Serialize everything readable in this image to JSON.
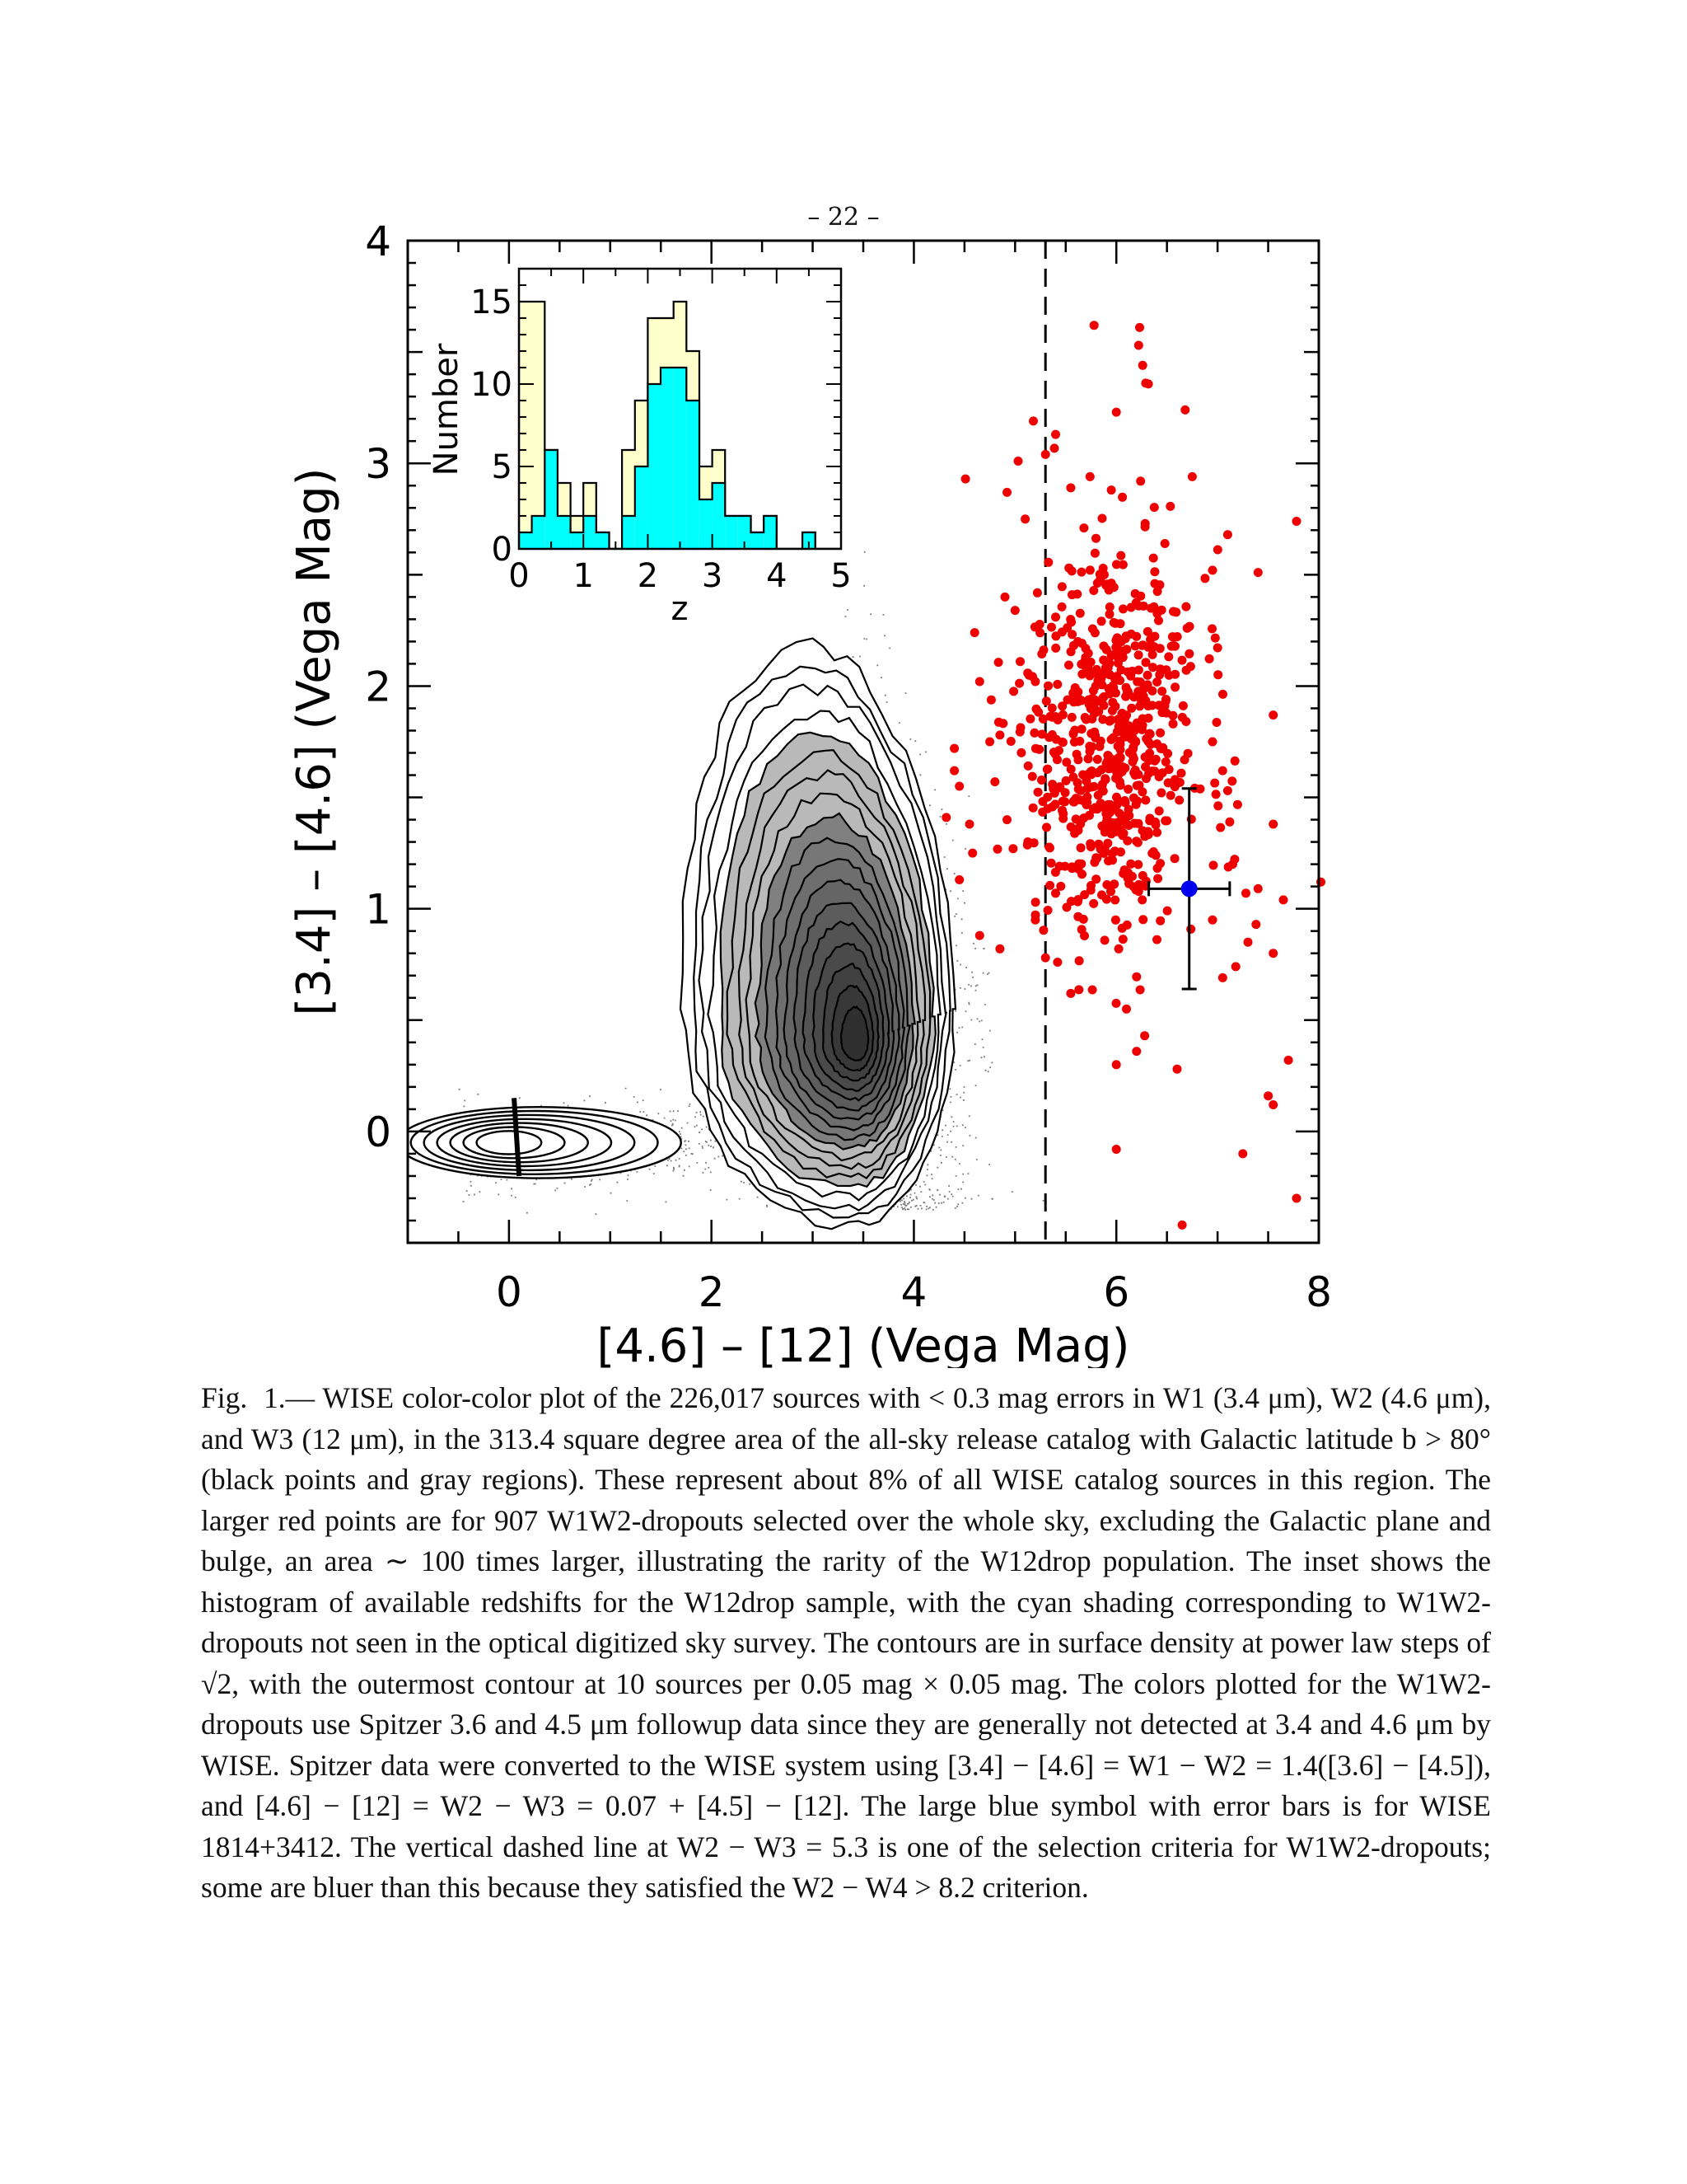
{
  "page": {
    "number": "– 22 –"
  },
  "chart_data": [
    {
      "type": "scatter",
      "xlabel": "[4.6] – [12] (Vega Mag)",
      "ylabel": "[3.4] – [4.6] (Vega Mag)",
      "xlim": [
        -1,
        8
      ],
      "ylim": [
        -0.5,
        4
      ],
      "xticks": [
        "0",
        "2",
        "4",
        "6",
        "8"
      ],
      "yticks": [
        "0",
        "1",
        "2",
        "3",
        "4"
      ],
      "xtick_values": [
        0,
        2,
        4,
        6,
        8
      ],
      "ytick_values": [
        0,
        1,
        2,
        3,
        4
      ],
      "selection_line_x": 5.3,
      "contour_peak": {
        "x": 3.45,
        "y": 0.4
      },
      "highlight_point": {
        "x": 6.72,
        "y": 1.09,
        "xerr": 0.4,
        "yerr_low": 0.45,
        "yerr_high": 0.45,
        "color": "#0000ee"
      },
      "dropout_color": "#ee0000",
      "dropout_points": [
        [
          5.78,
          3.62
        ],
        [
          6.23,
          3.61
        ],
        [
          6.22,
          3.53
        ],
        [
          6.26,
          3.44
        ],
        [
          6.29,
          3.36
        ],
        [
          6.68,
          3.24
        ],
        [
          6.0,
          3.23
        ],
        [
          5.18,
          3.19
        ],
        [
          5.4,
          3.13
        ],
        [
          5.03,
          3.01
        ],
        [
          5.3,
          3.04
        ],
        [
          5.55,
          2.89
        ],
        [
          4.51,
          2.93
        ],
        [
          5.74,
          2.94
        ],
        [
          5.95,
          2.88
        ],
        [
          6.24,
          2.92
        ],
        [
          6.75,
          2.94
        ],
        [
          7.78,
          2.74
        ],
        [
          4.92,
          2.87
        ],
        [
          5.1,
          2.75
        ],
        [
          5.68,
          2.71
        ],
        [
          6.48,
          2.64
        ],
        [
          7.1,
          2.68
        ],
        [
          5.88,
          2.5
        ],
        [
          6.38,
          2.46
        ],
        [
          6.95,
          2.52
        ],
        [
          7.4,
          2.51
        ],
        [
          5.4,
          2.31
        ],
        [
          5.95,
          2.14
        ],
        [
          6.7,
          2.26
        ],
        [
          5.2,
          2.02
        ],
        [
          5.05,
          2.11
        ],
        [
          4.65,
          2.02
        ],
        [
          5.62,
          1.93
        ],
        [
          6.18,
          1.8
        ],
        [
          4.85,
          1.78
        ],
        [
          4.75,
          1.75
        ],
        [
          6.95,
          1.75
        ],
        [
          7.55,
          1.87
        ],
        [
          4.4,
          1.72
        ],
        [
          4.4,
          1.62
        ],
        [
          6.58,
          1.58
        ],
        [
          4.45,
          1.55
        ],
        [
          7.1,
          1.53
        ],
        [
          4.8,
          1.57
        ],
        [
          4.32,
          1.41
        ],
        [
          4.55,
          1.38
        ],
        [
          7.05,
          1.62
        ],
        [
          4.92,
          1.4
        ],
        [
          7.12,
          1.39
        ],
        [
          7.55,
          1.38
        ],
        [
          4.58,
          1.25
        ],
        [
          4.98,
          1.27
        ],
        [
          7.15,
          1.2
        ],
        [
          7.4,
          1.09
        ],
        [
          8.02,
          1.12
        ],
        [
          4.45,
          1.13
        ],
        [
          5.4,
          1.07
        ],
        [
          7.28,
          1.07
        ],
        [
          7.65,
          1.04
        ],
        [
          5.2,
          0.95
        ],
        [
          6.95,
          0.95
        ],
        [
          7.38,
          0.93
        ],
        [
          4.65,
          0.88
        ],
        [
          4.85,
          0.82
        ],
        [
          7.3,
          0.85
        ],
        [
          7.55,
          0.8
        ],
        [
          5.3,
          0.78
        ],
        [
          5.42,
          0.76
        ],
        [
          7.18,
          0.74
        ],
        [
          5.55,
          0.62
        ],
        [
          6.1,
          0.55
        ],
        [
          7.05,
          0.69
        ],
        [
          6.28,
          0.43
        ],
        [
          6.2,
          0.36
        ],
        [
          6.0,
          0.3
        ],
        [
          6.6,
          0.28
        ],
        [
          7.7,
          0.32
        ],
        [
          7.5,
          0.16
        ],
        [
          7.55,
          0.12
        ],
        [
          6.0,
          -0.08
        ],
        [
          7.25,
          -0.1
        ],
        [
          7.78,
          -0.3
        ],
        [
          6.65,
          -0.42
        ],
        [
          4.9,
          2.4
        ],
        [
          5.0,
          2.34
        ],
        [
          4.6,
          2.24
        ]
      ],
      "scatter_cloud": {
        "label": "W1, W2, W3 sources with < 0.3 mag errors",
        "count": 226017
      }
    },
    {
      "type": "bar",
      "xlabel": "z",
      "ylabel": "Number",
      "xlim": [
        0,
        5
      ],
      "ylim": [
        0,
        17
      ],
      "xticks": [
        "0",
        "1",
        "2",
        "3",
        "4",
        "5"
      ],
      "yticks": [
        "0",
        "5",
        "10",
        "15"
      ],
      "xtick_values": [
        0,
        1,
        2,
        3,
        4,
        5
      ],
      "ytick_values": [
        0,
        5,
        10,
        15
      ],
      "bin_width": 0.2,
      "bin_starts": [
        0,
        0.2,
        0.4,
        0.6,
        0.8,
        1.0,
        1.2,
        1.4,
        1.6,
        1.8,
        2.0,
        2.2,
        2.4,
        2.6,
        2.8,
        3.0,
        3.2,
        3.4,
        3.6,
        3.8,
        4.0,
        4.2,
        4.4,
        4.6,
        4.8
      ],
      "series": [
        {
          "color": "#ffffcc",
          "values": [
            15,
            15,
            6,
            4,
            2,
            4,
            1,
            0,
            6,
            9,
            14,
            14,
            15,
            12,
            5,
            6,
            2,
            2,
            1,
            2,
            0,
            0,
            1,
            0,
            0
          ]
        },
        {
          "color": "#00ffff",
          "values": [
            1,
            2,
            6,
            2,
            1,
            2,
            1,
            0,
            2,
            5,
            10,
            11,
            11,
            9,
            3,
            4,
            2,
            2,
            1,
            2,
            0,
            0,
            1,
            0,
            0
          ]
        }
      ]
    }
  ],
  "caption": {
    "label": "Fig.",
    "number": "1.—",
    "text": "WISE color-color plot of the 226,017 sources with < 0.3 mag errors in W1 (3.4 μm), W2 (4.6 μm), and W3 (12 μm), in the 313.4 square degree area of the all-sky release catalog with Galactic latitude b > 80° (black points and gray regions). These represent about 8% of all WISE catalog sources in this region. The larger red points are for 907 W1W2-dropouts selected over the whole sky, excluding the Galactic plane and bulge, an area ∼ 100 times larger, illustrating the rarity of the W12drop population. The inset shows the histogram of available redshifts for the W12drop sample, with the cyan shading corresponding to W1W2-dropouts not seen in the optical digitized sky survey. The contours are in surface density at power law steps of √2, with the outermost contour at 10 sources per 0.05 mag × 0.05 mag. The colors plotted for the W1W2-dropouts use Spitzer 3.6 and 4.5 μm followup data since they are generally not detected at 3.4 and 4.6 μm by WISE. Spitzer data were converted to the WISE system using [3.4] − [4.6] = W1 − W2 = 1.4([3.6] − [4.5]), and [4.6] − [12] = W2 − W3 = 0.07 + [4.5] − [12]. The large blue symbol with error bars is for WISE 1814+3412. The vertical dashed line at W2 − W3 = 5.3 is one of the selection criteria for W1W2-dropouts; some are bluer than this because they satisfied the W2 − W4 > 8.2 criterion."
  }
}
